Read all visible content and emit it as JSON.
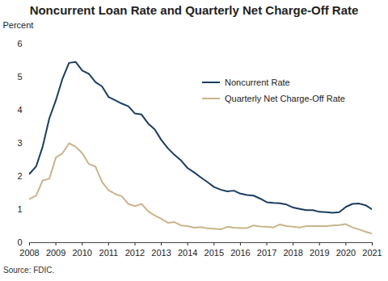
{
  "chart_data": {
    "type": "line",
    "title": "Noncurrent Loan Rate and Quarterly Net Charge-Off Rate",
    "y_label": "Percent",
    "source": "Source: FDIC.",
    "x": [
      2008,
      2008.25,
      2008.5,
      2008.75,
      2009,
      2009.25,
      2009.5,
      2009.75,
      2010,
      2010.25,
      2010.5,
      2010.75,
      2011,
      2011.25,
      2011.5,
      2011.75,
      2012,
      2012.25,
      2012.5,
      2012.75,
      2013,
      2013.25,
      2013.5,
      2013.75,
      2014,
      2014.25,
      2014.5,
      2014.75,
      2015,
      2015.25,
      2015.5,
      2015.75,
      2016,
      2016.25,
      2016.5,
      2016.75,
      2017,
      2017.25,
      2017.5,
      2017.75,
      2018,
      2018.25,
      2018.5,
      2018.75,
      2019,
      2019.25,
      2019.5,
      2019.75,
      2020,
      2020.25,
      2020.5,
      2020.75,
      2021
    ],
    "series": [
      {
        "name": "Noncurrent Rate",
        "color": "#1b3d5f",
        "type": "line",
        "values": [
          2.08,
          2.3,
          2.9,
          3.75,
          4.3,
          4.95,
          5.43,
          5.46,
          5.2,
          5.1,
          4.85,
          4.72,
          4.4,
          4.3,
          4.2,
          4.12,
          3.9,
          3.87,
          3.6,
          3.42,
          3.1,
          2.85,
          2.65,
          2.48,
          2.25,
          2.12,
          1.97,
          1.83,
          1.68,
          1.6,
          1.55,
          1.57,
          1.48,
          1.44,
          1.42,
          1.33,
          1.22,
          1.2,
          1.19,
          1.15,
          1.06,
          1.02,
          0.98,
          0.98,
          0.93,
          0.92,
          0.9,
          0.92,
          1.08,
          1.17,
          1.18,
          1.13,
          1.0
        ]
      },
      {
        "name": "Quarterly Net Charge-Off Rate",
        "color": "#c9b48c",
        "type": "line",
        "values": [
          1.32,
          1.42,
          1.88,
          1.93,
          2.57,
          2.7,
          3.0,
          2.9,
          2.7,
          2.38,
          2.3,
          1.83,
          1.58,
          1.47,
          1.4,
          1.17,
          1.1,
          1.17,
          0.95,
          0.82,
          0.72,
          0.6,
          0.62,
          0.52,
          0.5,
          0.45,
          0.47,
          0.43,
          0.42,
          0.4,
          0.48,
          0.45,
          0.44,
          0.44,
          0.52,
          0.49,
          0.48,
          0.46,
          0.55,
          0.5,
          0.48,
          0.46,
          0.5,
          0.5,
          0.5,
          0.5,
          0.52,
          0.53,
          0.56,
          0.46,
          0.4,
          0.33,
          0.27
        ]
      }
    ],
    "xlim": [
      2008,
      2021
    ],
    "xticks": [
      2008,
      2009,
      2010,
      2011,
      2012,
      2013,
      2014,
      2015,
      2016,
      2017,
      2018,
      2019,
      2020,
      2021
    ],
    "ylim": [
      0,
      6
    ],
    "yticks": [
      0,
      1,
      2,
      3,
      4,
      5,
      6
    ],
    "grid": false,
    "legend": "top-right"
  }
}
